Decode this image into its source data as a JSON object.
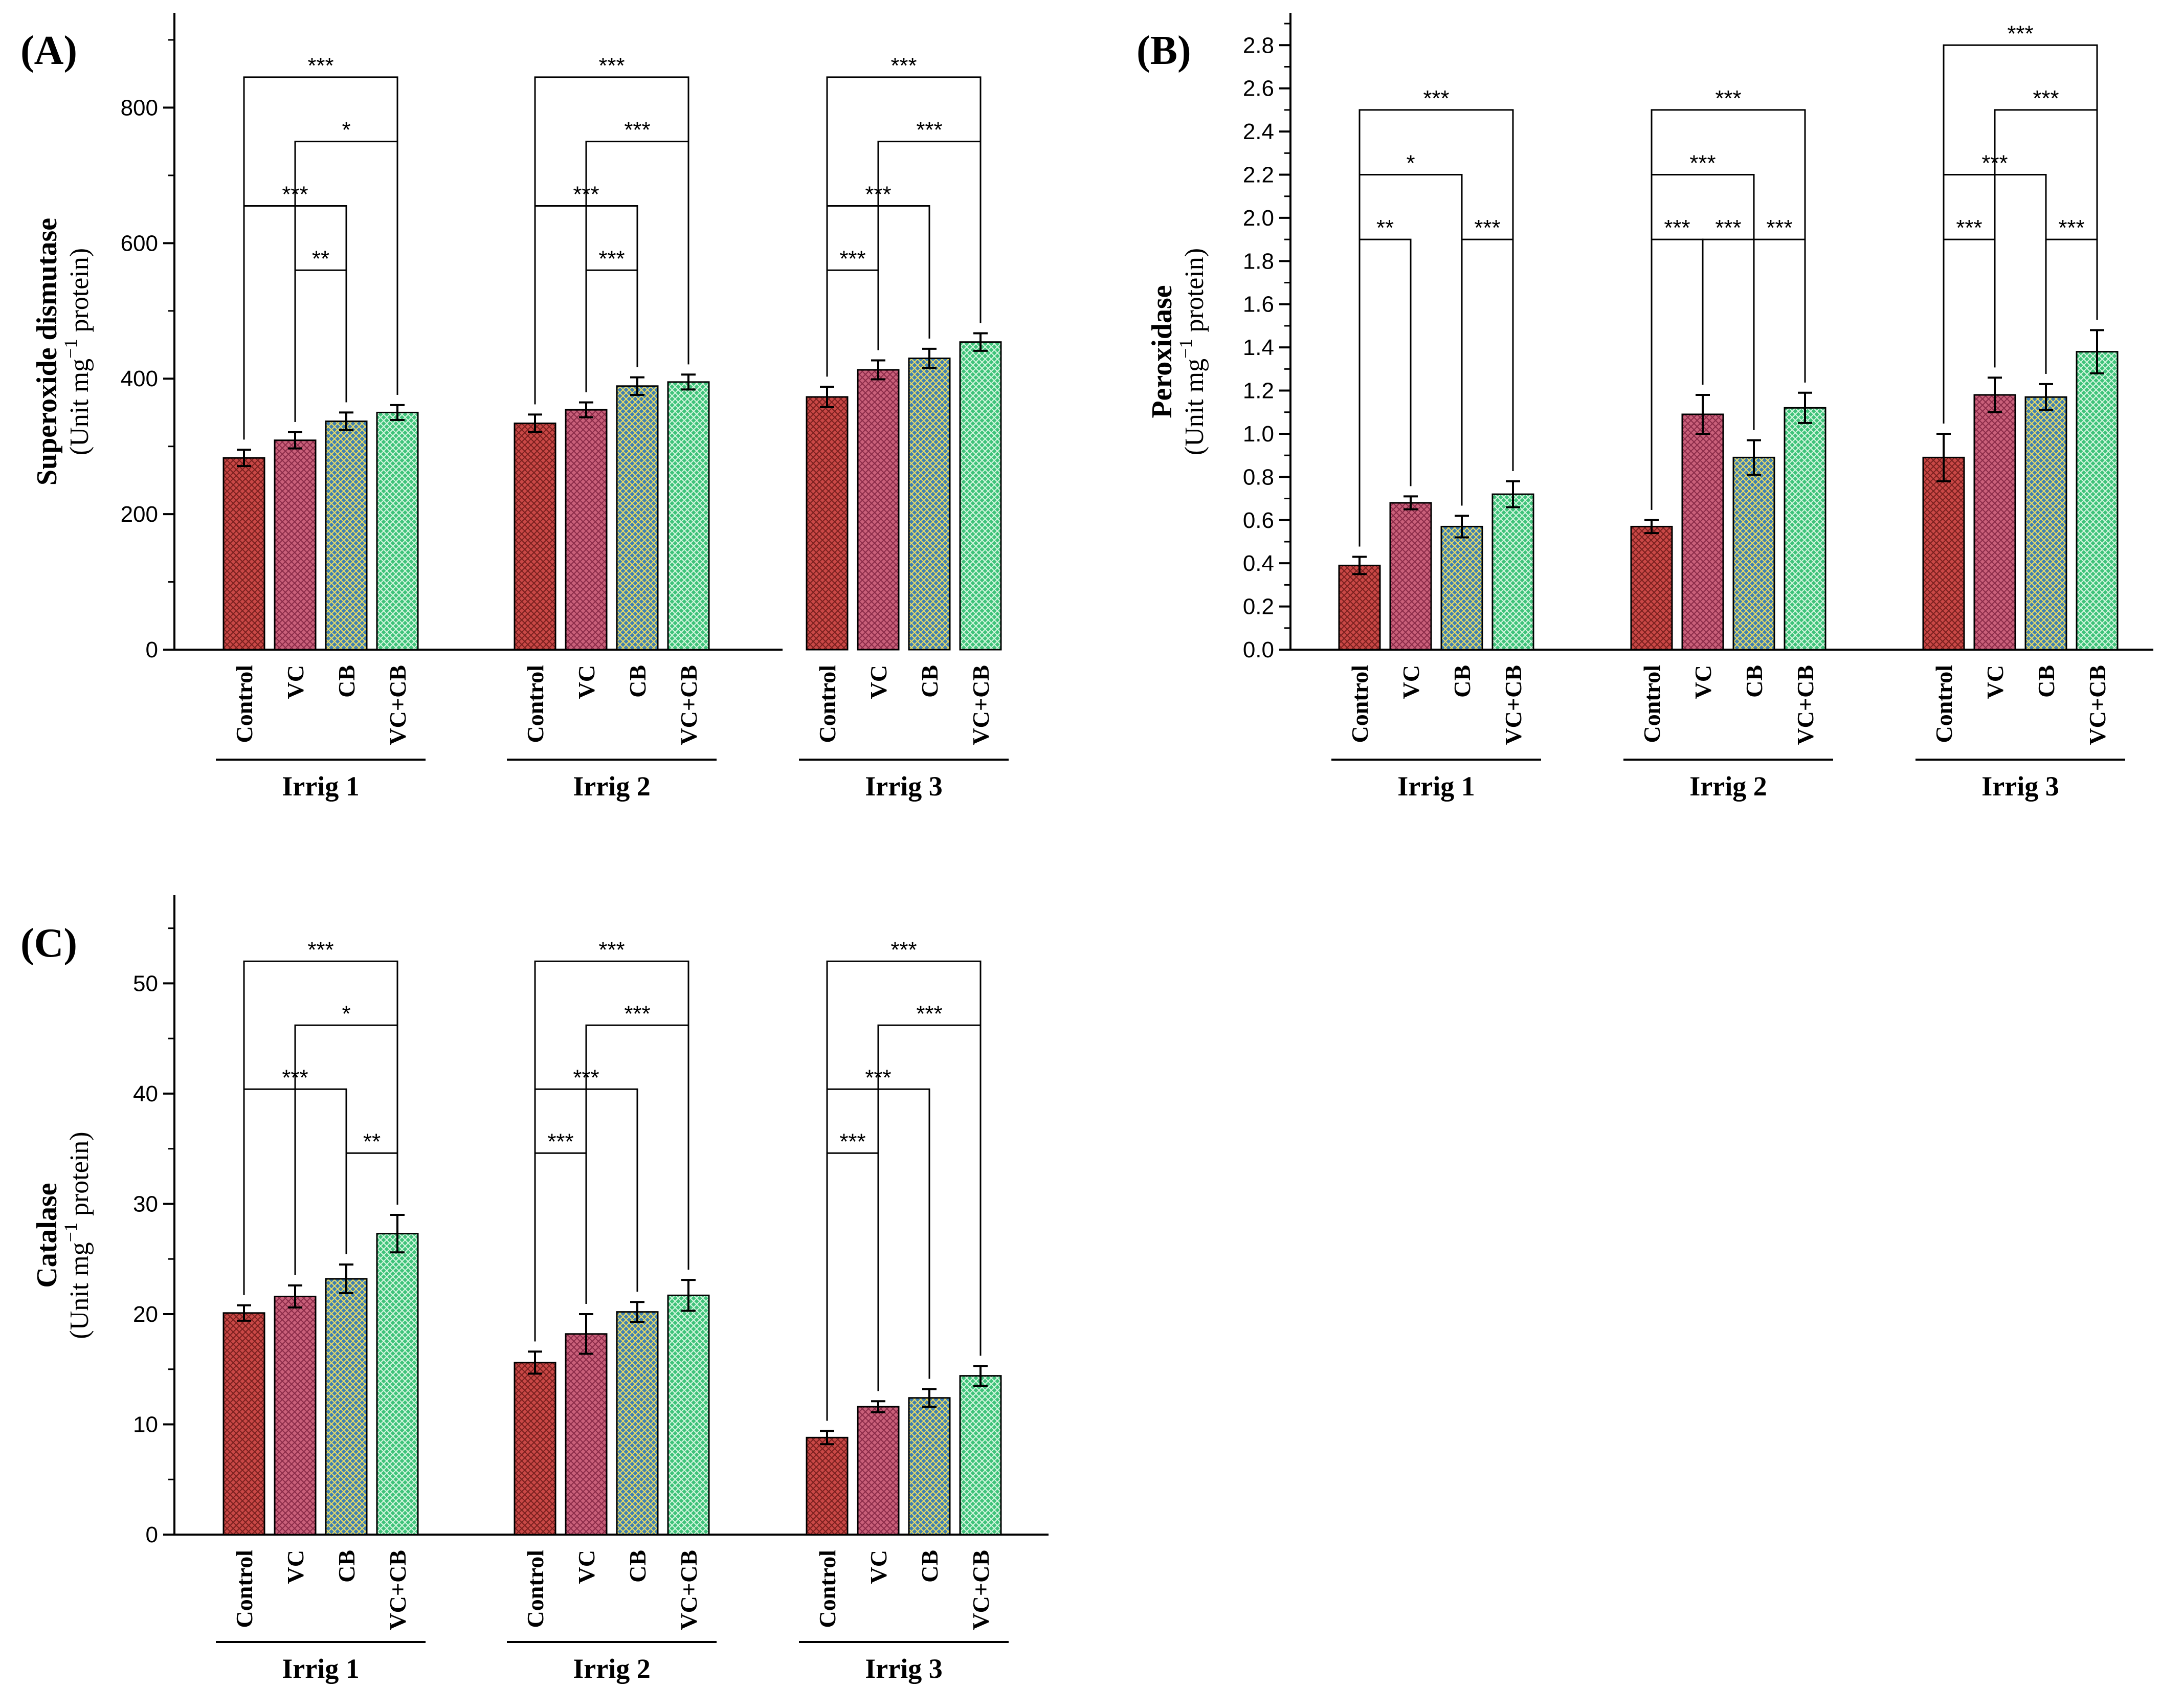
{
  "patterns": {
    "Control": {
      "fill": "#c94846",
      "stroke": "#7a1f1e"
    },
    "VC": {
      "fill": "#c9607a",
      "stroke": "#8a2a48"
    },
    "CB": {
      "fill": "#3f7fb3",
      "stroke": "#f0e060"
    },
    "VC+CB": {
      "fill": "#3fc37a",
      "stroke": "#d8f7e2"
    }
  },
  "chart_data": [
    {
      "id": "A",
      "type": "bar",
      "panel_label": "(A)",
      "ylabel_bold": "Superoxide dismutase",
      "ylabel_unit_pre": "(Unit mg",
      "ylabel_unit_sup": "−1",
      "ylabel_unit_post": " protein)",
      "ylim": [
        0,
        940
      ],
      "yticks": [
        0,
        200,
        400,
        600,
        800
      ],
      "ytick_labels": [
        "0",
        "200",
        "400",
        "600",
        "800"
      ],
      "categories": [
        "Control",
        "VC",
        "CB",
        "VC+CB"
      ],
      "groups": [
        {
          "name": "Irrig 1",
          "values": [
            283,
            309,
            337,
            350
          ],
          "errors": [
            12,
            12,
            13,
            11
          ]
        },
        {
          "name": "Irrig 2",
          "values": [
            334,
            354,
            389,
            395
          ],
          "errors": [
            13,
            11,
            13,
            11
          ]
        },
        {
          "name": "Irrig 3",
          "values": [
            373,
            413,
            430,
            454
          ],
          "errors": [
            15,
            14,
            14,
            13
          ]
        }
      ],
      "brackets": [
        [
          {
            "from": 0,
            "to": 3,
            "level": 845,
            "stars": "***"
          },
          {
            "from": 1,
            "to": 3,
            "level": 750,
            "stars": "*"
          },
          {
            "from": 0,
            "to": 2,
            "level": 655,
            "stars": "***"
          },
          {
            "from": 1,
            "to": 2,
            "level": 560,
            "stars": "**"
          }
        ],
        [
          {
            "from": 0,
            "to": 3,
            "level": 845,
            "stars": "***"
          },
          {
            "from": 1,
            "to": 3,
            "level": 750,
            "stars": "***"
          },
          {
            "from": 0,
            "to": 2,
            "level": 655,
            "stars": "***"
          },
          {
            "from": 1,
            "to": 2,
            "level": 560,
            "stars": "***"
          }
        ],
        [
          {
            "from": 0,
            "to": 3,
            "level": 845,
            "stars": "***"
          },
          {
            "from": 1,
            "to": 3,
            "level": 750,
            "stars": "***"
          },
          {
            "from": 0,
            "to": 2,
            "level": 655,
            "stars": "***"
          },
          {
            "from": 0,
            "to": 1,
            "level": 560,
            "stars": "***"
          }
        ]
      ]
    },
    {
      "id": "B",
      "type": "bar",
      "panel_label": "(B)",
      "ylabel_bold": "Peroxidase",
      "ylabel_unit_pre": "(Unit mg",
      "ylabel_unit_sup": "−1",
      "ylabel_unit_post": " protein)",
      "ylim": [
        0,
        2.95
      ],
      "yticks": [
        0,
        0.2,
        0.4,
        0.6,
        0.8,
        1.0,
        1.2,
        1.4,
        1.6,
        1.8,
        2.0,
        2.2,
        2.4,
        2.6,
        2.8
      ],
      "ytick_labels": [
        "0.0",
        "0.2",
        "0.4",
        "0.6",
        "0.8",
        "1.0",
        "1.2",
        "1.4",
        "1.6",
        "1.8",
        "2.0",
        "2.2",
        "2.4",
        "2.6",
        "2.8"
      ],
      "categories": [
        "Control",
        "VC",
        "CB",
        "VC+CB"
      ],
      "groups": [
        {
          "name": "Irrig 1",
          "values": [
            0.39,
            0.68,
            0.57,
            0.72
          ],
          "errors": [
            0.04,
            0.03,
            0.05,
            0.06
          ]
        },
        {
          "name": "Irrig 2",
          "values": [
            0.57,
            1.09,
            0.89,
            1.12
          ],
          "errors": [
            0.03,
            0.09,
            0.08,
            0.07
          ]
        },
        {
          "name": "Irrig 3",
          "values": [
            0.89,
            1.18,
            1.17,
            1.38
          ],
          "errors": [
            0.11,
            0.08,
            0.06,
            0.1
          ]
        }
      ],
      "brackets": [
        [
          {
            "from": 0,
            "to": 3,
            "level": 2.5,
            "stars": "***"
          },
          {
            "from": 0,
            "to": 2,
            "level": 2.2,
            "stars": "*"
          },
          {
            "from": 0,
            "to": 1,
            "level": 1.9,
            "stars": "**"
          },
          {
            "from": 2,
            "to": 3,
            "level": 1.9,
            "stars": "***"
          }
        ],
        [
          {
            "from": 0,
            "to": 3,
            "level": 2.5,
            "stars": "***"
          },
          {
            "from": 0,
            "to": 2,
            "level": 2.2,
            "stars": "***"
          },
          {
            "from": 0,
            "to": 1,
            "level": 1.9,
            "stars": "***"
          },
          {
            "from": 1,
            "to": 2,
            "level": 1.9,
            "stars": "***"
          },
          {
            "from": 2,
            "to": 3,
            "level": 1.9,
            "stars": "***"
          }
        ],
        [
          {
            "from": 0,
            "to": 3,
            "level": 2.8,
            "stars": "***"
          },
          {
            "from": 1,
            "to": 3,
            "level": 2.5,
            "stars": "***"
          },
          {
            "from": 0,
            "to": 2,
            "level": 2.2,
            "stars": "***"
          },
          {
            "from": 0,
            "to": 1,
            "level": 1.9,
            "stars": "***"
          },
          {
            "from": 2,
            "to": 3,
            "level": 1.9,
            "stars": "***"
          }
        ]
      ]
    },
    {
      "id": "C",
      "type": "bar",
      "panel_label": "(C)",
      "ylabel_bold": "Catalase",
      "ylabel_unit_pre": "(Unit mg",
      "ylabel_unit_sup": "−1",
      "ylabel_unit_post": " protein)",
      "ylim": [
        0,
        58
      ],
      "yticks": [
        0,
        10,
        20,
        30,
        40,
        50
      ],
      "ytick_labels": [
        "0",
        "10",
        "20",
        "30",
        "40",
        "50"
      ],
      "categories": [
        "Control",
        "VC",
        "CB",
        "VC+CB"
      ],
      "groups": [
        {
          "name": "Irrig 1",
          "values": [
            20.1,
            21.6,
            23.2,
            27.3
          ],
          "errors": [
            0.7,
            1.0,
            1.3,
            1.7
          ]
        },
        {
          "name": "Irrig 2",
          "values": [
            15.6,
            18.2,
            20.2,
            21.7
          ],
          "errors": [
            1.0,
            1.8,
            0.9,
            1.4
          ]
        },
        {
          "name": "Irrig 3",
          "values": [
            8.8,
            11.6,
            12.4,
            14.4
          ],
          "errors": [
            0.6,
            0.5,
            0.8,
            0.9
          ]
        }
      ],
      "brackets": [
        [
          {
            "from": 0,
            "to": 3,
            "level": 52,
            "stars": "***"
          },
          {
            "from": 1,
            "to": 3,
            "level": 46.2,
            "stars": "*"
          },
          {
            "from": 0,
            "to": 2,
            "level": 40.4,
            "stars": "***"
          },
          {
            "from": 2,
            "to": 3,
            "level": 34.6,
            "stars": "**"
          }
        ],
        [
          {
            "from": 0,
            "to": 3,
            "level": 52,
            "stars": "***"
          },
          {
            "from": 1,
            "to": 3,
            "level": 46.2,
            "stars": "***"
          },
          {
            "from": 0,
            "to": 2,
            "level": 40.4,
            "stars": "***"
          },
          {
            "from": 0,
            "to": 1,
            "level": 34.6,
            "stars": "***"
          }
        ],
        [
          {
            "from": 0,
            "to": 3,
            "level": 52,
            "stars": "***"
          },
          {
            "from": 1,
            "to": 3,
            "level": 46.2,
            "stars": "***"
          },
          {
            "from": 0,
            "to": 2,
            "level": 40.4,
            "stars": "***"
          },
          {
            "from": 0,
            "to": 1,
            "level": 34.6,
            "stars": "***"
          }
        ]
      ]
    }
  ]
}
